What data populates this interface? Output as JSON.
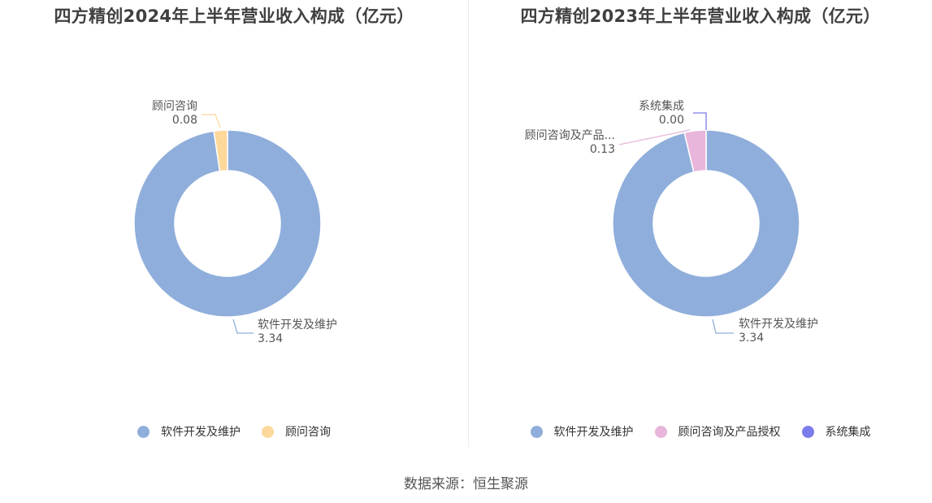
{
  "chart_data": [
    {
      "type": "pie",
      "title": "四方精创2024年上半年营业收入构成（亿元）",
      "series": [
        {
          "name": "软件开发及维护",
          "label": "软件开发及维护",
          "value": 3.34,
          "display_value": "3.34",
          "color": "#8faedb"
        },
        {
          "name": "顾问咨询",
          "label": "顾问咨询",
          "value": 0.08,
          "display_value": "0.08",
          "color": "#fcd89a"
        }
      ],
      "legend": [
        "软件开发及维护",
        "顾问咨询"
      ],
      "legend_position": "bottom"
    },
    {
      "type": "pie",
      "title": "四方精创2023年上半年营业收入构成（亿元）",
      "series": [
        {
          "name": "软件开发及维护",
          "label": "软件开发及维护",
          "value": 3.34,
          "display_value": "3.34",
          "color": "#8faedb"
        },
        {
          "name": "顾问咨询及产品授权",
          "label": "顾问咨询及产品...",
          "value": 0.13,
          "display_value": "0.13",
          "color": "#e8b6da"
        },
        {
          "name": "系统集成",
          "label": "系统集成",
          "value": 0.0,
          "display_value": "0.00",
          "color": "#7b7cec"
        }
      ],
      "legend": [
        "软件开发及维护",
        "顾问咨询及产品授权",
        "系统集成"
      ],
      "legend_position": "bottom"
    }
  ],
  "source": "数据来源：恒生聚源"
}
